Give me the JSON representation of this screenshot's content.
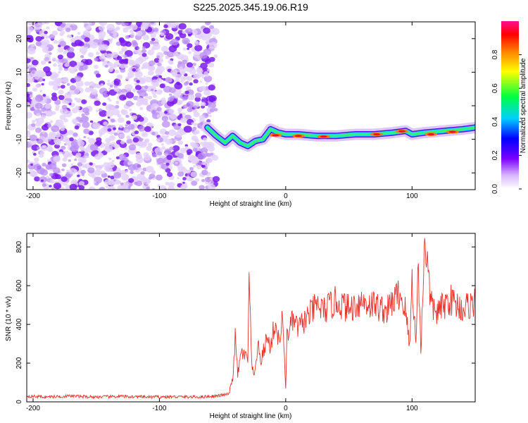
{
  "chart_data": [
    {
      "type": "heatmap",
      "title": "S225.2025.345.19.06.R19",
      "xlabel": "Height of straight line (km)",
      "ylabel": "Frequency (Hz)",
      "xlim": [
        -205,
        150
      ],
      "ylim": [
        -25,
        25
      ],
      "xticks": [
        -200,
        -100,
        0,
        100
      ],
      "yticks": [
        -20,
        -10,
        0,
        10,
        20
      ],
      "colorbar": {
        "label": "Normalized spectral amplitude",
        "range": [
          0,
          1
        ],
        "ticks": [
          "0.0",
          "0.2",
          "0.4",
          "0.6",
          "0.8"
        ]
      },
      "trace": [
        [
          -62,
          -6.5
        ],
        [
          -55,
          -9
        ],
        [
          -48,
          -11
        ],
        [
          -42,
          -9
        ],
        [
          -36,
          -11
        ],
        [
          -30,
          -12
        ],
        [
          -24,
          -10.5
        ],
        [
          -18,
          -10
        ],
        [
          -12,
          -7
        ],
        [
          -6,
          -8
        ],
        [
          0,
          -8.5
        ],
        [
          10,
          -8.5
        ],
        [
          25,
          -9
        ],
        [
          40,
          -9
        ],
        [
          55,
          -8.5
        ],
        [
          70,
          -8.5
        ],
        [
          85,
          -8
        ],
        [
          95,
          -7.5
        ],
        [
          100,
          -8.5
        ],
        [
          110,
          -8
        ],
        [
          125,
          -7.5
        ],
        [
          140,
          -7
        ],
        [
          150,
          -6.5
        ]
      ],
      "peaks": [
        [
          -8,
          -8.8
        ],
        [
          10,
          -9
        ],
        [
          30,
          -9.2
        ],
        [
          72,
          -8.5
        ],
        [
          92,
          -7.6
        ],
        [
          115,
          -8.5
        ],
        [
          132,
          -7.8
        ]
      ]
    },
    {
      "type": "line",
      "xlabel": "Height of straight line (km)",
      "ylabel": "SNR (10 * v/v)",
      "xlim": [
        -205,
        150
      ],
      "ylim": [
        0,
        870
      ],
      "xticks": [
        -200,
        -100,
        0,
        100
      ],
      "yticks": [
        0,
        200,
        400,
        600,
        800
      ],
      "series": [
        {
          "name": "SNR",
          "color": "#e8322a",
          "x": [
            -205,
            -190,
            -170,
            -150,
            -130,
            -110,
            -90,
            -70,
            -55,
            -45,
            -42,
            -40,
            -38,
            -35,
            -33,
            -30,
            -29,
            -27,
            -25,
            -22,
            -20,
            -18,
            -15,
            -12,
            -10,
            -8,
            -5,
            -3,
            -1,
            0,
            1,
            3,
            6,
            10,
            15,
            20,
            25,
            30,
            40,
            50,
            60,
            70,
            80,
            85,
            90,
            95,
            98,
            100,
            103,
            105,
            107,
            110,
            115,
            120,
            130,
            140,
            150
          ],
          "values": [
            30,
            25,
            30,
            25,
            28,
            25,
            26,
            25,
            30,
            40,
            120,
            330,
            140,
            260,
            240,
            220,
            620,
            200,
            120,
            300,
            200,
            250,
            330,
            280,
            360,
            400,
            300,
            420,
            260,
            60,
            350,
            380,
            420,
            380,
            420,
            460,
            500,
            470,
            520,
            480,
            520,
            500,
            470,
            520,
            560,
            470,
            280,
            630,
            300,
            720,
            250,
            870,
            500,
            460,
            530,
            480,
            520
          ]
        }
      ]
    }
  ]
}
